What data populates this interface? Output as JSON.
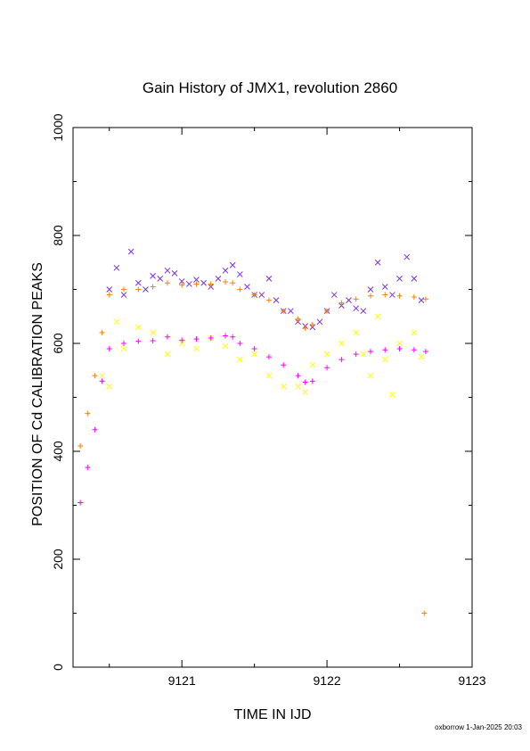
{
  "chart_data": {
    "type": "scatter",
    "title": "Gain History of JMX1, revolution 2860",
    "xlabel": "TIME IN IJD",
    "ylabel": "POSITION OF Cd CALIBRATION PEAKS",
    "xlim": [
      9120.25,
      9123
    ],
    "ylim": [
      0,
      1000
    ],
    "x_ticks": [
      "9121",
      "9122",
      "9123"
    ],
    "y_ticks": [
      "0",
      "200",
      "400",
      "600",
      "800",
      "1000"
    ],
    "grid": false,
    "legend": "none",
    "footer": "oxborrow  1-Jan-2025 20:03",
    "series": [
      {
        "marker": "x",
        "color": "#7b2fe0",
        "x": [
          9120.5,
          9120.55,
          9120.6,
          9120.65,
          9120.7,
          9120.75,
          9120.8,
          9120.85,
          9120.9,
          9120.95,
          9121.0,
          9121.05,
          9121.1,
          9121.15,
          9121.2,
          9121.25,
          9121.3,
          9121.35,
          9121.4,
          9121.45,
          9121.5,
          9121.55,
          9121.6,
          9121.65,
          9121.7,
          9121.75,
          9121.8,
          9121.85,
          9121.9,
          9121.95,
          9122.0,
          9122.05,
          9122.1,
          9122.15,
          9122.2,
          9122.25,
          9122.3,
          9122.35,
          9122.4,
          9122.45,
          9122.5,
          9122.55,
          9122.6,
          9122.65
        ],
        "y": [
          700,
          740,
          690,
          770,
          712,
          700,
          725,
          720,
          735,
          730,
          715,
          710,
          718,
          712,
          705,
          720,
          735,
          745,
          728,
          705,
          690,
          690,
          720,
          680,
          660,
          660,
          640,
          632,
          630,
          640,
          660,
          690,
          670,
          680,
          665,
          660,
          700,
          750,
          705,
          690,
          720,
          760,
          720,
          680
        ]
      },
      {
        "marker": "+",
        "color": "#ff7f00",
        "x": [
          9120.3,
          9120.35,
          9120.4,
          9120.45,
          9120.5,
          9120.6,
          9120.7,
          9120.8,
          9120.9,
          9121.0,
          9121.1,
          9121.2,
          9121.3,
          9121.35,
          9121.4,
          9121.5,
          9121.6,
          9121.7,
          9121.8,
          9121.85,
          9121.9,
          9122.0,
          9122.1,
          9122.2,
          9122.3,
          9122.4,
          9122.5,
          9122.6,
          9122.68,
          9122.67
        ],
        "y": [
          410,
          470,
          540,
          620,
          690,
          700,
          700,
          705,
          712,
          708,
          710,
          710,
          714,
          712,
          700,
          690,
          680,
          660,
          645,
          628,
          635,
          660,
          675,
          682,
          688,
          690,
          688,
          686,
          682,
          100
        ]
      },
      {
        "marker": "x",
        "color": "#ffff00",
        "x": [
          9120.45,
          9120.5,
          9120.55,
          9120.6,
          9120.7,
          9120.8,
          9120.9,
          9121.0,
          9121.1,
          9121.2,
          9121.3,
          9121.4,
          9121.5,
          9121.6,
          9121.7,
          9121.8,
          9121.85,
          9121.9,
          9122.0,
          9122.1,
          9122.2,
          9122.25,
          9122.3,
          9122.35,
          9122.4,
          9122.45,
          9122.5,
          9122.6,
          9122.65
        ],
        "y": [
          540,
          520,
          640,
          590,
          630,
          620,
          580,
          600,
          590,
          610,
          595,
          570,
          580,
          540,
          520,
          520,
          510,
          560,
          580,
          600,
          620,
          580,
          540,
          650,
          570,
          505,
          600,
          620,
          575
        ]
      },
      {
        "marker": "+",
        "color": "#ff00ff",
        "x": [
          9120.3,
          9120.35,
          9120.4,
          9120.45,
          9120.5,
          9120.6,
          9120.7,
          9120.8,
          9120.9,
          9121.0,
          9121.1,
          9121.2,
          9121.3,
          9121.35,
          9121.4,
          9121.5,
          9121.6,
          9121.7,
          9121.8,
          9121.85,
          9121.9,
          9122.0,
          9122.1,
          9122.2,
          9122.3,
          9122.4,
          9122.5,
          9122.6,
          9122.68
        ],
        "y": [
          305,
          370,
          440,
          530,
          590,
          600,
          604,
          605,
          612,
          606,
          608,
          610,
          614,
          612,
          600,
          590,
          575,
          560,
          540,
          528,
          530,
          555,
          570,
          580,
          585,
          588,
          590,
          588,
          585
        ]
      }
    ]
  }
}
